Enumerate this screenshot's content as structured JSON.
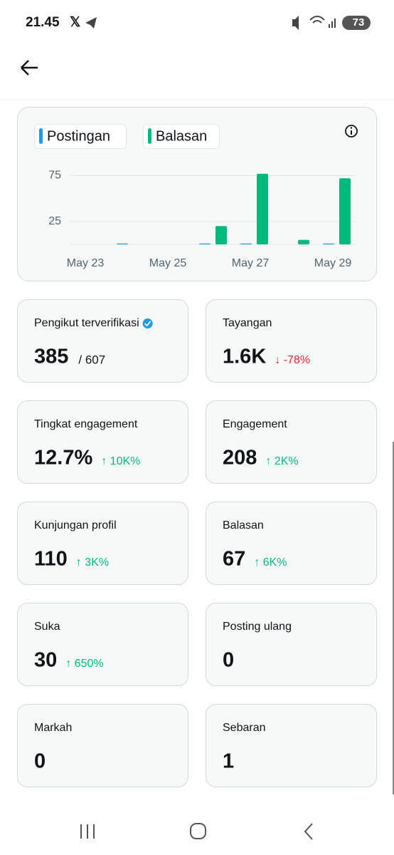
{
  "status": {
    "time": "21.45",
    "battery": "73"
  },
  "chart": {
    "type": "bar",
    "categories": [
      "May 23",
      null,
      "May 25",
      null,
      "May 27",
      null,
      "May 29"
    ],
    "series": [
      {
        "name": "Postingan",
        "color": "#1d9bf0",
        "values": [
          0,
          1,
          0,
          1,
          1,
          0,
          1
        ]
      },
      {
        "name": "Balasan",
        "color": "#00ba7c",
        "values": [
          0,
          0,
          0,
          20,
          77,
          5,
          72
        ]
      }
    ],
    "ylim": [
      0,
      80
    ],
    "yticks": [
      25,
      75
    ],
    "grid": true
  },
  "cards": [
    {
      "label": "Pengikut terverifikasi",
      "value": "385",
      "total": "/ 607",
      "verified": true
    },
    {
      "label": "Tayangan",
      "value": "1.6K",
      "change": "↓ -78%",
      "trend": "down"
    },
    {
      "label": "Tingkat engagement",
      "value": "12.7%",
      "change": "↑ 10K%",
      "trend": "up"
    },
    {
      "label": "Engagement",
      "value": "208",
      "change": "↑ 2K%",
      "trend": "up"
    },
    {
      "label": "Kunjungan profil",
      "value": "110",
      "change": "↑ 3K%",
      "trend": "up"
    },
    {
      "label": "Balasan",
      "value": "67",
      "change": "↑ 6K%",
      "trend": "up"
    },
    {
      "label": "Suka",
      "value": "30",
      "change": "↑ 650%",
      "trend": "up"
    },
    {
      "label": "Posting ulang",
      "value": "0"
    },
    {
      "label": "Markah",
      "value": "0"
    },
    {
      "label": "Sebaran",
      "value": "1"
    }
  ]
}
